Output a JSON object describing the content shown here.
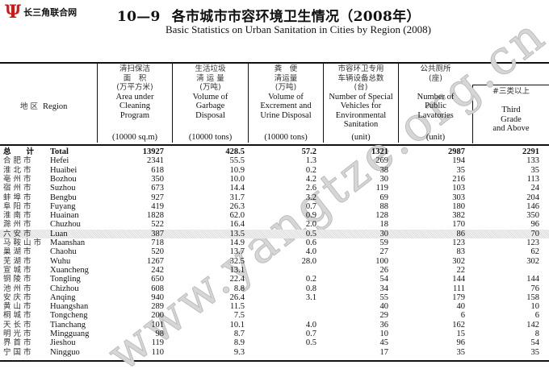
{
  "logo": {
    "mark": "Ψ",
    "text": "长三角联合网"
  },
  "title": {
    "number": "10—9",
    "cn": "各市城市市容环境卫生情况（2008年）",
    "en": "Basic Statistics on Urban Sanitation in Cities by Region (2008)"
  },
  "watermark": "www.yangtze.org.cn",
  "header": {
    "region": {
      "cn": "地 区",
      "en": "Region"
    },
    "columns": [
      {
        "cn": [
          "清扫保洁",
          "面　积",
          "(万平方米)"
        ],
        "en": [
          "Area under",
          "Cleaning",
          "Program"
        ],
        "unit": "(10000 sq.m)"
      },
      {
        "cn": [
          "生活垃圾",
          "清 运 量",
          "(万吨)"
        ],
        "en": [
          "Volume of",
          "Garbage",
          "Disposal"
        ],
        "unit": "(10000 tons)"
      },
      {
        "cn": [
          "粪　便",
          "清运量",
          "(万吨)"
        ],
        "en": [
          "Volume of",
          "Excrement and",
          "Urine Disposal"
        ],
        "unit": "(10000 tons)"
      },
      {
        "cn": [
          "市容环卫专用",
          "车辆设备总数",
          "(台)"
        ],
        "en": [
          "Number of Special",
          "Vehicles for",
          "Environmental",
          "Sanitation"
        ],
        "unit": "(unit)"
      },
      {
        "cn": [
          "公共厕所",
          "(座)"
        ],
        "en": [
          "Number of",
          "Public",
          "Lavatories"
        ],
        "unit": "(unit)"
      },
      {
        "cn": [
          "#三类以上"
        ],
        "en": [
          "Third",
          "Grade",
          "and Above"
        ]
      }
    ]
  },
  "rows": [
    {
      "cn": "总　　计",
      "en": "Total",
      "v": [
        "13927",
        "428.5",
        "57.2",
        "1321",
        "2987",
        "2291"
      ]
    },
    {
      "cn": "合肥市",
      "en": "Hefei",
      "v": [
        "2341",
        "55.5",
        "1.3",
        "269",
        "194",
        "133"
      ]
    },
    {
      "cn": "淮北市",
      "en": "Huaibei",
      "v": [
        "618",
        "10.9",
        "0.2",
        "38",
        "35",
        "35"
      ]
    },
    {
      "cn": "亳州市",
      "en": "Bozhou",
      "v": [
        "350",
        "10.0",
        "4.2",
        "30",
        "216",
        "113"
      ]
    },
    {
      "cn": "宿州市",
      "en": "Suzhou",
      "v": [
        "673",
        "14.4",
        "2.6",
        "119",
        "103",
        "24"
      ]
    },
    {
      "cn": "蚌埠市",
      "en": "Bengbu",
      "v": [
        "927",
        "31.7",
        "3.2",
        "69",
        "303",
        "204"
      ]
    },
    {
      "cn": "阜阳市",
      "en": "Fuyang",
      "v": [
        "419",
        "26.3",
        "0.7",
        "88",
        "180",
        "146"
      ]
    },
    {
      "cn": "淮南市",
      "en": "Huainan",
      "v": [
        "1828",
        "62.0",
        "0.9",
        "128",
        "382",
        "350"
      ]
    },
    {
      "cn": "滁州市",
      "en": "Chuzhou",
      "v": [
        "522",
        "16.4",
        "2.0",
        "18",
        "170",
        "96"
      ]
    },
    {
      "cn": "六安市",
      "en": "Luan",
      "v": [
        "387",
        "13.5",
        "0.5",
        "30",
        "86",
        "70"
      ]
    },
    {
      "cn": "马鞍山市",
      "en": "Maanshan",
      "v": [
        "718",
        "14.9",
        "0.6",
        "59",
        "123",
        "123"
      ]
    },
    {
      "cn": "巢湖市",
      "en": "Chaohu",
      "v": [
        "520",
        "13.7",
        "4.0",
        "27",
        "83",
        "62"
      ]
    },
    {
      "cn": "芜湖市",
      "en": "Wuhu",
      "v": [
        "1267",
        "32.5",
        "28.0",
        "100",
        "302",
        "302"
      ]
    },
    {
      "cn": "宣城市",
      "en": "Xuancheng",
      "v": [
        "242",
        "13.1",
        "",
        "26",
        "22",
        ""
      ]
    },
    {
      "cn": "铜陵市",
      "en": "Tongling",
      "v": [
        "650",
        "22.4",
        "0.2",
        "54",
        "144",
        "144"
      ]
    },
    {
      "cn": "池州市",
      "en": "Chizhou",
      "v": [
        "608",
        "8.8",
        "0.8",
        "34",
        "111",
        "76"
      ]
    },
    {
      "cn": "安庆市",
      "en": "Anqing",
      "v": [
        "940",
        "26.4",
        "3.1",
        "55",
        "179",
        "158"
      ]
    },
    {
      "cn": "黄山市",
      "en": "Huangshan",
      "v": [
        "289",
        "11.5",
        "",
        "40",
        "40",
        "10"
      ]
    },
    {
      "cn": "桐城市",
      "en": "Tongcheng",
      "v": [
        "200",
        "7.5",
        "",
        "29",
        "6",
        "6"
      ]
    },
    {
      "cn": "天长市",
      "en": "Tianchang",
      "v": [
        "101",
        "10.1",
        "4.0",
        "36",
        "162",
        "142"
      ]
    },
    {
      "cn": "明光市",
      "en": "Mingguang",
      "v": [
        "98",
        "8.7",
        "0.7",
        "10",
        "15",
        "8"
      ]
    },
    {
      "cn": "界首市",
      "en": "Jieshou",
      "v": [
        "119",
        "8.9",
        "0.5",
        "45",
        "96",
        "54"
      ]
    },
    {
      "cn": "宁国市",
      "en": "Ningguo",
      "v": [
        "110",
        "9.3",
        "",
        "17",
        "35",
        "35"
      ]
    }
  ],
  "highlight_row": "Luan"
}
